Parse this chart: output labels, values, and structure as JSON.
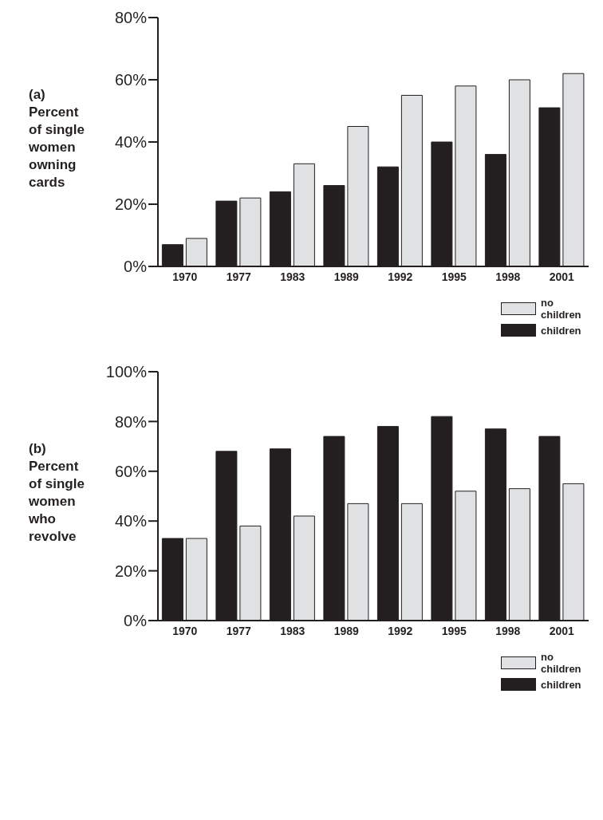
{
  "chart_data": [
    {
      "type": "bar",
      "ylabel": "(a) Percent of single women owning cards",
      "categories": [
        "1970",
        "1977",
        "1983",
        "1989",
        "1992",
        "1995",
        "1998",
        "2001"
      ],
      "series": [
        {
          "name": "children",
          "color": "#231f20",
          "values": [
            7,
            21,
            24,
            26,
            32,
            40,
            36,
            51
          ]
        },
        {
          "name": "no children",
          "color": "#e0e1e3",
          "values": [
            9,
            22,
            33,
            45,
            55,
            58,
            60,
            62
          ]
        }
      ],
      "ylim": [
        0,
        80
      ],
      "yticks": [
        {
          "value": 0,
          "label": "0%"
        },
        {
          "value": 20,
          "label": "20%"
        },
        {
          "value": 40,
          "label": "40%"
        },
        {
          "value": 60,
          "label": "60%"
        },
        {
          "value": 80,
          "label": "80%"
        }
      ],
      "grid": false,
      "legend": "bottom right"
    },
    {
      "type": "bar",
      "ylabel": "(b) Percent of single women who revolve",
      "categories": [
        "1970",
        "1977",
        "1983",
        "1989",
        "1992",
        "1995",
        "1998",
        "2001"
      ],
      "series": [
        {
          "name": "children",
          "color": "#231f20",
          "values": [
            33,
            68,
            69,
            74,
            78,
            82,
            77,
            74
          ]
        },
        {
          "name": "no children",
          "color": "#e0e1e3",
          "values": [
            33,
            38,
            42,
            47,
            47,
            52,
            53,
            55
          ]
        }
      ],
      "ylim": [
        0,
        100
      ],
      "yticks": [
        {
          "value": 0,
          "label": "0%"
        },
        {
          "value": 20,
          "label": "20%"
        },
        {
          "value": 40,
          "label": "40%"
        },
        {
          "value": 60,
          "label": "60%"
        },
        {
          "value": 80,
          "label": "80%"
        },
        {
          "value": 100,
          "label": "100%"
        }
      ],
      "grid": false,
      "legend": "bottom right"
    }
  ]
}
